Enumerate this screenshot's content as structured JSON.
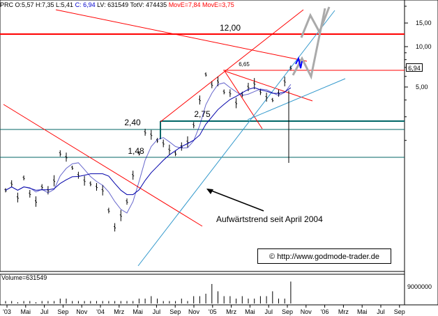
{
  "infobar": {
    "prefix": "PRC O:5,57 H:7,35 L:5,41 ",
    "close": "C: 6,94",
    "middle": " LV: 631549 TotV: 474435 ",
    "move1": "MovE=7,84",
    "move2": " MovE=3,75",
    "close_color": "#0000cc",
    "move_color": "#ff0000"
  },
  "current_price": "6,94",
  "watermark": "© http://www.godmode-trader.de",
  "volume_label": "Volume=631549",
  "volume_max": "9000000",
  "annotation": "Aufwärtstrend seit  April 2004",
  "colors": {
    "up_candle": "#000000",
    "resistance": "#ff0000",
    "trendline": "#3399cc",
    "support": "#006666",
    "moving_average": "#0000aa",
    "projection": "#aaaaaa",
    "projection_blue": "#0000ff"
  },
  "chart_data": {
    "type": "line",
    "log_scale": true,
    "y_ticks": [
      "15,00",
      "10,00",
      "5,00"
    ],
    "x_ticks": [
      "'03",
      "Mai",
      "Jul",
      "Sep",
      "Nov",
      "'04",
      "Mrz",
      "Mai",
      "Jul",
      "Sep",
      "Nov",
      "'05",
      "Mrz",
      "Mai",
      "Jul",
      "Sep",
      "Nov",
      "'06",
      "Mrz",
      "Mai",
      "Jul",
      "Sep"
    ],
    "levels": [
      {
        "label": "12,00",
        "value": 12.0,
        "color": "#ff0000"
      },
      {
        "label": "6,65",
        "value": 6.65,
        "color": "#ff0000"
      },
      {
        "label": "2,75",
        "value": 2.75,
        "color": "#006666"
      },
      {
        "label": "2,40",
        "value": 2.4,
        "color": "#006666"
      },
      {
        "label": "1,48",
        "value": 1.48,
        "color": "#006666"
      }
    ],
    "price_points": [
      [
        0,
        0.85
      ],
      [
        2,
        0.95
      ],
      [
        4,
        0.75
      ],
      [
        6,
        1.05
      ],
      [
        8,
        0.8
      ],
      [
        10,
        0.7
      ],
      [
        12,
        0.9
      ],
      [
        14,
        0.85
      ],
      [
        16,
        1.0
      ],
      [
        18,
        1.6
      ],
      [
        20,
        1.5
      ],
      [
        22,
        1.25
      ],
      [
        24,
        1.1
      ],
      [
        26,
        1.0
      ],
      [
        28,
        0.95
      ],
      [
        30,
        0.9
      ],
      [
        32,
        0.85
      ],
      [
        34,
        0.6
      ],
      [
        36,
        0.45
      ],
      [
        38,
        0.55
      ],
      [
        40,
        0.7
      ],
      [
        42,
        1.1
      ],
      [
        44,
        1.6
      ],
      [
        46,
        2.3
      ],
      [
        48,
        2.2
      ],
      [
        50,
        2.0
      ],
      [
        52,
        1.9
      ],
      [
        54,
        1.7
      ],
      [
        56,
        1.6
      ],
      [
        58,
        1.8
      ],
      [
        60,
        1.95
      ],
      [
        62,
        2.6
      ],
      [
        64,
        4.0
      ],
      [
        66,
        6.2
      ],
      [
        68,
        5.2
      ],
      [
        70,
        5.5
      ],
      [
        72,
        4.6
      ],
      [
        74,
        4.5
      ],
      [
        76,
        3.8
      ],
      [
        78,
        4.4
      ],
      [
        80,
        5.0
      ],
      [
        82,
        5.3
      ],
      [
        84,
        4.6
      ],
      [
        86,
        4.2
      ],
      [
        88,
        4.0
      ],
      [
        90,
        4.5
      ],
      [
        92,
        5.5
      ],
      [
        94,
        6.94
      ]
    ],
    "volume": [
      1,
      1,
      0.5,
      1,
      1,
      0.5,
      1,
      1,
      1,
      2,
      2,
      1,
      1,
      1,
      1,
      1,
      1,
      1,
      1,
      1,
      1,
      1,
      2,
      2,
      3,
      2,
      1,
      1,
      1,
      2,
      1,
      3,
      3,
      4,
      8,
      5,
      3,
      3,
      2,
      3,
      2,
      2,
      3,
      3,
      5,
      2,
      2,
      9
    ]
  }
}
